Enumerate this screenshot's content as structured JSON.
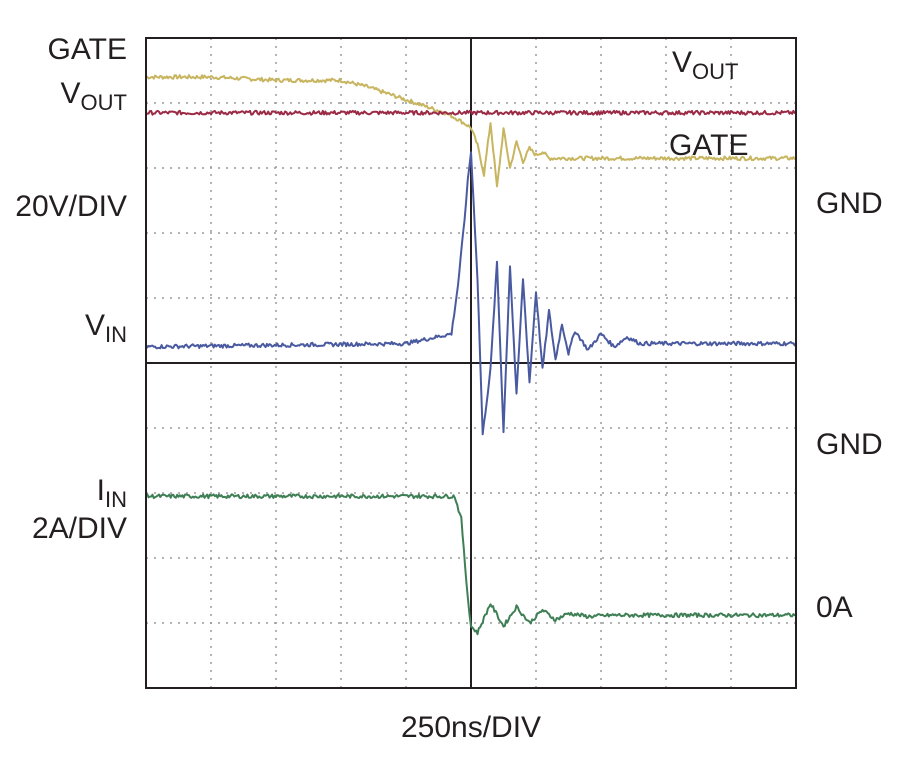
{
  "labels": {
    "left": {
      "gate": "GATE",
      "vout_main": "V",
      "vout_sub": "OUT",
      "vscale": "20V/DIV",
      "vin_main": "V",
      "vin_sub": "IN",
      "iin_main": "I",
      "iin_sub": "IN",
      "iscale": "2A/DIV"
    },
    "right": {
      "gnd_upper": "GND",
      "gnd_lower": "GND",
      "zero_amp": "0A"
    },
    "trace": {
      "vout_main": "V",
      "vout_sub": "OUT",
      "gate": "GATE"
    },
    "xlabel": "250ns/DIV"
  },
  "chart_data": {
    "type": "line",
    "xlabel": "250ns/DIV",
    "x_divisions": 10,
    "y_divisions": 10,
    "x_unit_per_div": "250ns",
    "grid": "dotted",
    "series": [
      {
        "name": "GATE",
        "color": "#c8b560",
        "x": [
          0,
          1,
          2,
          3,
          3.4,
          3.7,
          4.0,
          4.3,
          4.6,
          4.8,
          5.0,
          5.1,
          5.2,
          5.3,
          5.4,
          5.5,
          5.6,
          5.7,
          5.8,
          5.9,
          6.0,
          6.1,
          6.2,
          6.5,
          7,
          8,
          9,
          10
        ],
        "y": [
          9.4,
          9.4,
          9.35,
          9.35,
          9.25,
          9.15,
          9.05,
          8.95,
          8.85,
          8.75,
          8.62,
          8.35,
          7.9,
          8.7,
          7.7,
          8.6,
          8.0,
          8.4,
          8.1,
          8.3,
          8.2,
          8.25,
          8.15,
          8.15,
          8.15,
          8.15,
          8.15,
          8.15
        ]
      },
      {
        "name": "VOUT",
        "color": "#9a2a45",
        "x": [
          0,
          5,
          10
        ],
        "y": [
          8.85,
          8.85,
          8.85
        ]
      },
      {
        "name": "VIN",
        "color": "#4a5aa0",
        "x": [
          0,
          4,
          4.7,
          4.8,
          4.9,
          4.95,
          5.0,
          5.1,
          5.18,
          5.3,
          5.4,
          5.5,
          5.6,
          5.7,
          5.8,
          5.9,
          6.0,
          6.1,
          6.2,
          6.3,
          6.4,
          6.5,
          6.6,
          6.8,
          7.0,
          7.2,
          7.4,
          7.6,
          8,
          9,
          10
        ],
        "y": [
          5.25,
          5.3,
          5.45,
          6.2,
          7.2,
          7.8,
          8.25,
          6.3,
          3.9,
          4.9,
          6.55,
          3.95,
          6.5,
          4.5,
          6.3,
          4.7,
          6.1,
          4.9,
          5.8,
          5.05,
          5.6,
          5.15,
          5.5,
          5.2,
          5.45,
          5.25,
          5.4,
          5.3,
          5.3,
          5.3,
          5.3
        ]
      },
      {
        "name": "IIN",
        "color": "#3f7f55",
        "x": [
          0,
          4,
          4.75,
          4.85,
          4.95,
          5.0,
          5.1,
          5.3,
          5.5,
          5.7,
          5.9,
          6.1,
          6.3,
          6.5,
          6.8,
          7.2,
          8,
          9,
          10
        ],
        "y": [
          2.95,
          2.95,
          2.95,
          2.6,
          1.4,
          0.95,
          0.85,
          1.3,
          0.95,
          1.25,
          1.0,
          1.2,
          1.05,
          1.15,
          1.1,
          1.12,
          1.12,
          1.12,
          1.12
        ]
      }
    ]
  }
}
